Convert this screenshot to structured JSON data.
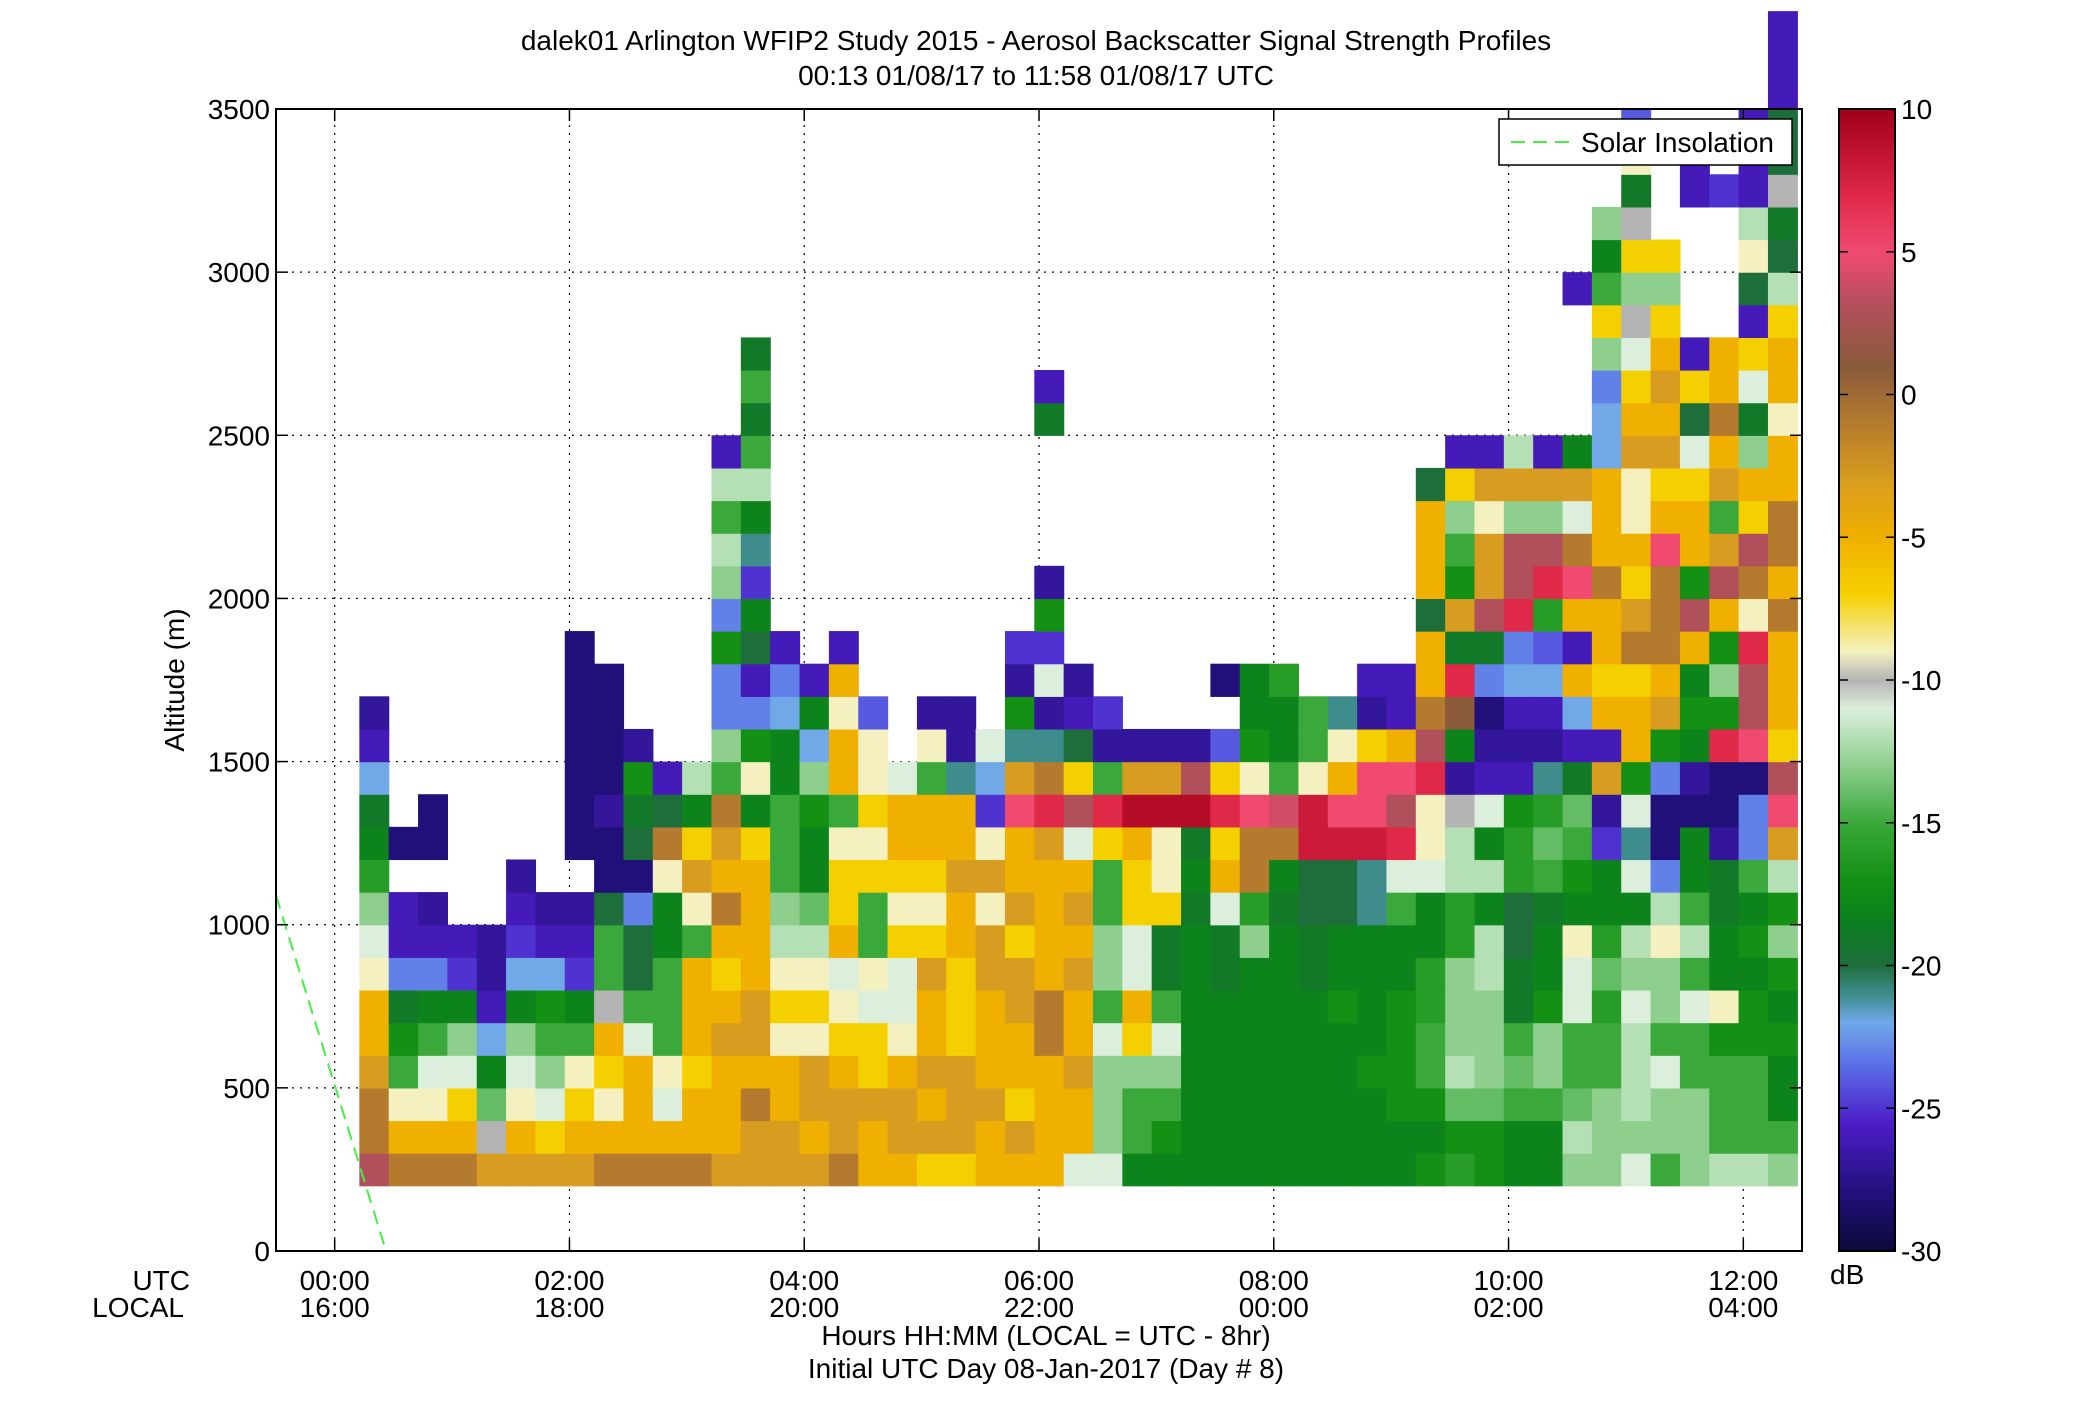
{
  "chart_data": {
    "type": "heatmap",
    "title": "dalek01 Arlington WFIP2 Study 2015 - Aerosol Backscatter Signal Strength Profiles",
    "subtitle": "00:13 01/08/17 to 11:58 01/08/17  UTC",
    "ylabel": "Altitude (m)",
    "xlabel": "Hours HH:MM  (LOCAL = UTC - 8hr)",
    "xlabel2": "Initial UTC Day 08-Jan-2017 (Day # 8)",
    "x_row_labels": [
      "UTC",
      "LOCAL"
    ],
    "xlim_hours": [
      -0.5,
      12.5
    ],
    "ylim": [
      0,
      3500
    ],
    "grid": true,
    "y_ticks": [
      {
        "value": 0,
        "label": "0"
      },
      {
        "value": 500,
        "label": "500"
      },
      {
        "value": 1000,
        "label": "1000"
      },
      {
        "value": 1500,
        "label": "1500"
      },
      {
        "value": 2000,
        "label": "2000"
      },
      {
        "value": 2500,
        "label": "2500"
      },
      {
        "value": 3000,
        "label": "3000"
      },
      {
        "value": 3500,
        "label": "3500"
      }
    ],
    "x_ticks": [
      {
        "value": 0,
        "utc": "00:00",
        "local": "16:00"
      },
      {
        "value": 2,
        "utc": "02:00",
        "local": "18:00"
      },
      {
        "value": 4,
        "utc": "04:00",
        "local": "20:00"
      },
      {
        "value": 6,
        "utc": "06:00",
        "local": "22:00"
      },
      {
        "value": 8,
        "utc": "08:00",
        "local": "00:00"
      },
      {
        "value": 10,
        "utc": "10:00",
        "local": "02:00"
      },
      {
        "value": 12,
        "utc": "12:00",
        "local": "04:00"
      }
    ],
    "legend": {
      "placement": "top-right",
      "entries": [
        {
          "label": "Solar Insolation",
          "color": "#44ee44",
          "style": "dashed"
        }
      ]
    },
    "solar_insolation": {
      "x": [
        -0.5,
        0.42
      ],
      "y": [
        1090,
        20
      ]
    },
    "colorbar": {
      "range": [
        -30,
        10
      ],
      "unit": "dB",
      "ticks": [
        {
          "value": 10,
          "label": "10"
        },
        {
          "value": 5,
          "label": "5"
        },
        {
          "value": 0,
          "label": "0"
        },
        {
          "value": -5,
          "label": "-5"
        },
        {
          "value": -10,
          "label": "-10"
        },
        {
          "value": -15,
          "label": "-15"
        },
        {
          "value": -20,
          "label": "-20"
        },
        {
          "value": -25,
          "label": "-25"
        },
        {
          "value": -30,
          "label": "-30"
        }
      ],
      "colormap": [
        {
          "v": -30,
          "c": "#0a0a3a"
        },
        {
          "v": -28,
          "c": "#22107a"
        },
        {
          "v": -25.5,
          "c": "#4c1ec8"
        },
        {
          "v": -23.5,
          "c": "#5a6ee8"
        },
        {
          "v": -22,
          "c": "#70a8e8"
        },
        {
          "v": -21,
          "c": "#3f8c8c"
        },
        {
          "v": -20,
          "c": "#1e6e3c"
        },
        {
          "v": -18.5,
          "c": "#0a7e1e"
        },
        {
          "v": -17,
          "c": "#149014"
        },
        {
          "v": -15,
          "c": "#3aa83a"
        },
        {
          "v": -13,
          "c": "#8ecf8e"
        },
        {
          "v": -11,
          "c": "#dcefdc"
        },
        {
          "v": -10,
          "c": "#b4b4b4"
        },
        {
          "v": -9,
          "c": "#f5f0c0"
        },
        {
          "v": -7,
          "c": "#f5d000"
        },
        {
          "v": -5,
          "c": "#f0b000"
        },
        {
          "v": -3,
          "c": "#d89c20"
        },
        {
          "v": -1,
          "c": "#b47a2e"
        },
        {
          "v": 1,
          "c": "#8a5a3a"
        },
        {
          "v": 3,
          "c": "#b0505a"
        },
        {
          "v": 5,
          "c": "#f04a70"
        },
        {
          "v": 7,
          "c": "#e02848"
        },
        {
          "v": 10,
          "c": "#a00018"
        }
      ]
    },
    "grid_cells": {
      "x_start_hours": 0.21,
      "x_step_hours": 0.25,
      "y_start_m": 200,
      "y_step_m": 100,
      "no_data": null,
      "columns_dB": [
        [
          3,
          -1,
          -1,
          -3,
          -5,
          -5,
          -9,
          -11,
          -13,
          -16,
          -18,
          -19,
          -22,
          -26,
          -27
        ],
        [
          -1,
          -5,
          -9,
          -15,
          -17,
          -19,
          -23,
          -26,
          -26,
          null,
          -28
        ],
        [
          -1,
          -5,
          -9,
          -11,
          -15,
          -18,
          -23,
          -26,
          -27,
          null,
          -28,
          -28
        ],
        [
          -1,
          -5,
          -7,
          -11,
          -13,
          -18,
          -25,
          -26
        ],
        [
          -3,
          -10,
          -14,
          -18,
          -22,
          -26,
          -27,
          -27
        ],
        [
          -3,
          -5,
          -9,
          -11,
          -13,
          -18,
          -22,
          -25,
          -26,
          -27
        ],
        [
          -3,
          -7,
          -11,
          -13,
          -15,
          -17,
          -22,
          -26,
          -27
        ],
        [
          -3,
          -5,
          -7,
          -9,
          -15,
          -18,
          -25,
          -26,
          -27,
          null,
          -28,
          -28,
          -28,
          -28,
          -28,
          -28,
          -28
        ],
        [
          -1,
          -5,
          -9,
          -7,
          -5,
          -10,
          -15,
          -15,
          -20,
          -28,
          -28,
          -27,
          -28,
          -28,
          -28,
          -28
        ],
        [
          -1,
          -5,
          -5,
          -5,
          -11,
          -15,
          -20,
          -20,
          -23,
          -28,
          -20,
          -19,
          -17,
          -27
        ],
        [
          -1,
          -5,
          -11,
          -9,
          -15,
          -15,
          -15,
          -18,
          -18,
          -9,
          -1,
          -20,
          -26
        ],
        [
          -1,
          -5,
          -5,
          -7,
          -5,
          -5,
          -5,
          -15,
          -9,
          -3,
          -7,
          -18,
          -12
        ],
        [
          -3,
          -5,
          -5,
          -5,
          -3,
          -5,
          -7,
          -5,
          -1,
          -5,
          -3,
          -1,
          -15,
          -13,
          -23,
          -23,
          -17,
          -23,
          -13,
          -12,
          -15,
          -12,
          -26
        ],
        [
          -3,
          -3,
          -1,
          -5,
          -3,
          -3,
          -5,
          -5,
          -5,
          -5,
          -7,
          -18,
          -9,
          -17,
          -23,
          -26,
          -20,
          -18,
          -25,
          -21,
          -18,
          -12,
          -15,
          -19,
          -15,
          -19
        ],
        [
          -3,
          -3,
          -5,
          -5,
          -9,
          -7,
          -9,
          -12,
          -13,
          -15,
          -15,
          -15,
          -18,
          -18,
          -22,
          -23,
          -26
        ],
        [
          -3,
          -5,
          -3,
          -3,
          -9,
          -7,
          -9,
          -12,
          -14,
          -18,
          -18,
          -17,
          -13,
          -22,
          -18,
          -26
        ],
        [
          -1,
          -3,
          -3,
          -5,
          -7,
          -9,
          -11,
          -5,
          -7,
          -7,
          -9,
          -15,
          -5,
          -5,
          -9,
          -5,
          -26
        ],
        [
          -5,
          -5,
          -3,
          -7,
          -7,
          -11,
          -9,
          -15,
          -15,
          -7,
          -9,
          -7,
          -9,
          -9,
          -24
        ],
        [
          -5,
          -3,
          -3,
          -5,
          -9,
          -11,
          -11,
          -7,
          -9,
          -7,
          -5,
          -5,
          -11
        ],
        [
          -7,
          -3,
          -5,
          -3,
          -5,
          -5,
          -3,
          -7,
          -9,
          -7,
          -5,
          -5,
          -15,
          -9,
          -27
        ],
        [
          -7,
          -3,
          -3,
          -3,
          -7,
          -7,
          -7,
          -5,
          -5,
          -3,
          -5,
          -5,
          -21,
          -27,
          -27
        ],
        [
          -5,
          -5,
          -3,
          -5,
          -5,
          -5,
          -3,
          -3,
          -9,
          -3,
          -9,
          -25,
          -22,
          -11
        ],
        [
          -5,
          -3,
          -7,
          -5,
          -5,
          -3,
          -3,
          -7,
          -3,
          -5,
          -5,
          5,
          -3,
          -21,
          -17,
          -27,
          -25
        ],
        [
          -5,
          -5,
          -5,
          -5,
          -1,
          -1,
          -5,
          -5,
          -5,
          -5,
          -3,
          7,
          -1,
          -21,
          -27,
          -11,
          -25,
          -17,
          -27,
          null,
          null,
          null,
          null,
          -19,
          -26
        ],
        [
          -11,
          -5,
          -5,
          -3,
          -5,
          -5,
          -3,
          -5,
          -3,
          -5,
          -11,
          3,
          -7,
          -20,
          -26,
          -27
        ],
        [
          -11,
          -13,
          -13,
          -13,
          -11,
          -15,
          -13,
          -13,
          -15,
          -15,
          -7,
          7,
          -15,
          -27,
          -25
        ],
        [
          -18,
          -15,
          -15,
          -13,
          -7,
          -5,
          -11,
          -11,
          -7,
          -7,
          -5,
          9,
          -3,
          -27
        ],
        [
          -18,
          -17,
          -15,
          -13,
          -11,
          -15,
          -19,
          -19,
          -7,
          -9,
          -9,
          9,
          -3,
          -27
        ],
        [
          -18,
          -18,
          -18,
          -18,
          -18,
          -18,
          -18,
          -18,
          -19,
          -18,
          -19,
          9,
          3,
          -27
        ],
        [
          -18,
          -18,
          -18,
          -18,
          -18,
          -18,
          -19,
          -19,
          -11,
          -5,
          -7,
          7,
          -7,
          -24,
          null,
          -28
        ],
        [
          -18,
          -18,
          -18,
          -18,
          -18,
          -18,
          -18,
          -13,
          -16,
          -1,
          -1,
          5,
          -9,
          -17,
          -18,
          -18
        ],
        [
          -18,
          -18,
          -18,
          -18,
          -18,
          -18,
          -18,
          -18,
          -19,
          -18,
          -1,
          4,
          -15,
          -18,
          -18,
          -16
        ],
        [
          -18,
          -18,
          -18,
          -18,
          -18,
          -18,
          -19,
          -19,
          -20,
          -20,
          8,
          8,
          -9,
          -15,
          -15
        ],
        [
          -18,
          -18,
          -18,
          -18,
          -18,
          -17,
          -18,
          -18,
          -20,
          -20,
          8,
          5,
          -5,
          -9,
          -21
        ],
        [
          -18,
          -18,
          -18,
          -17,
          -18,
          -18,
          -18,
          -18,
          -21,
          -21,
          8,
          5,
          5,
          -7,
          -27,
          -26
        ],
        [
          -18,
          -18,
          -17,
          -17,
          -17,
          -17,
          -18,
          -18,
          -15,
          -11,
          7,
          3,
          5,
          -5,
          -26,
          -26
        ],
        [
          -17,
          -18,
          -17,
          -15,
          -15,
          -16,
          -16,
          -18,
          -18,
          -11,
          -9,
          -9,
          7,
          3,
          -1,
          -5,
          -5,
          -20,
          -5,
          -5,
          -5,
          -20
        ],
        [
          -16,
          -17,
          -14,
          -12,
          -13,
          -13,
          -13,
          -16,
          -16,
          -12,
          -12,
          -10,
          -27,
          -18,
          1,
          7,
          -19,
          -3,
          -17,
          -15,
          -13,
          -7,
          -26
        ],
        [
          -17,
          -17,
          -14,
          -13,
          -13,
          -13,
          -12,
          -12,
          -18,
          -12,
          -18,
          -11,
          -26,
          -27,
          -28,
          -23,
          -19,
          3,
          -3,
          -3,
          -9,
          -3,
          -26
        ],
        [
          -18,
          -18,
          -15,
          -14,
          -15,
          -19,
          -19,
          -20,
          -20,
          -16,
          -16,
          -17,
          -26,
          -27,
          -26,
          -22,
          -23,
          7,
          3,
          3,
          -13,
          -3,
          -12
        ],
        [
          -18,
          -18,
          -15,
          -13,
          -13,
          -17,
          -18,
          -18,
          -19,
          -15,
          -14,
          -16,
          -21,
          -27,
          -26,
          -22,
          -24,
          -16,
          7,
          3,
          -13,
          -3,
          -26
        ],
        [
          -13,
          -12,
          -14,
          -15,
          -15,
          -11,
          -11,
          -9,
          -18,
          -17,
          -15,
          -14,
          -19,
          -26,
          -22,
          -5,
          -26,
          -5,
          5,
          -1,
          -11,
          -3,
          -18,
          null,
          null,
          null,
          null,
          -26
        ],
        [
          -13,
          -13,
          -13,
          -15,
          -15,
          -16,
          -14,
          -16,
          -18,
          -18,
          -25,
          -27,
          -3,
          -26,
          -5,
          -7,
          -5,
          -5,
          -1,
          -5,
          -5,
          -5,
          -22,
          -22,
          -23,
          -13,
          -7,
          -15,
          -18,
          -13
        ],
        [
          -11,
          -13,
          -12,
          -12,
          -12,
          -11,
          -13,
          -12,
          -18,
          -11,
          -21,
          -11,
          -17,
          -5,
          -5,
          -7,
          -1,
          -3,
          -7,
          -5,
          -9,
          -9,
          -3,
          -5,
          -7,
          -11,
          -10,
          -13,
          -7,
          -10,
          -19,
          -9,
          -24
        ],
        [
          -15,
          -13,
          -13,
          -11,
          -15,
          -13,
          -13,
          -9,
          -12,
          -23,
          -28,
          -28,
          -23,
          -17,
          -3,
          -5,
          -1,
          -1,
          -1,
          5,
          -5,
          -7,
          -3,
          -5,
          -3,
          -5,
          -7,
          -13,
          -7
        ],
        [
          -13,
          -13,
          -13,
          -15,
          -15,
          -11,
          -15,
          -12,
          -15,
          -18,
          -18,
          -28,
          -27,
          -18,
          -17,
          -18,
          -5,
          3,
          -17,
          -5,
          -5,
          -7,
          -11,
          -20,
          -7,
          -26,
          null,
          null,
          null,
          null,
          -26,
          -26
        ],
        [
          -12,
          -15,
          -15,
          -15,
          -17,
          -9,
          -18,
          -18,
          -19,
          -19,
          -27,
          -28,
          -28,
          7,
          -17,
          -13,
          -17,
          -5,
          3,
          -3,
          -15,
          -3,
          -5,
          -1,
          -5,
          -5,
          null,
          null,
          null,
          null,
          -25
        ],
        [
          -12,
          -15,
          -15,
          -15,
          -17,
          -17,
          -18,
          -17,
          -18,
          -15,
          -23,
          -23,
          -28,
          5,
          3,
          3,
          7,
          -9,
          -1,
          3,
          -7,
          -5,
          -13,
          -19,
          -11,
          -7,
          -26,
          -20,
          -9,
          -12,
          -26,
          -26,
          -26
        ],
        [
          -13,
          -15,
          -18,
          -18,
          -17,
          -18,
          -17,
          -13,
          -17,
          -12,
          -3,
          5,
          3,
          -7,
          -5,
          -5,
          -5,
          -1,
          -5,
          -1,
          -1,
          -5,
          -5,
          -9,
          -5,
          -5,
          -7,
          -12,
          -20,
          -19,
          -10,
          -20,
          -20,
          -26,
          -26,
          -26
        ]
      ]
    }
  }
}
